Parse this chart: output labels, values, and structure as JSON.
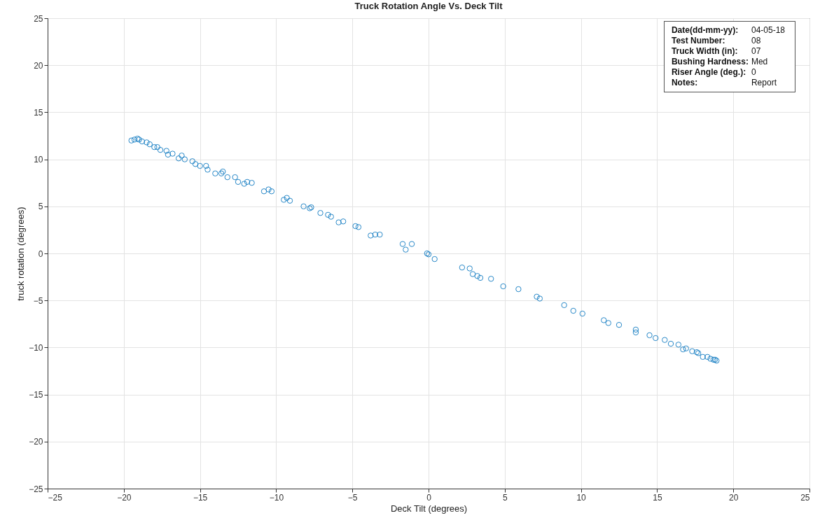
{
  "chart_data": {
    "type": "scatter",
    "title": "Truck Rotation Angle Vs. Deck Tilt",
    "xlabel": "Deck Tilt (degrees)",
    "ylabel": "truck rotation (degrees)",
    "x": [
      -19.5,
      -19.3,
      -19.1,
      -19.0,
      -18.8,
      -18.5,
      -18.3,
      -18.0,
      -17.8,
      -17.6,
      -17.2,
      -17.1,
      -16.8,
      -16.4,
      -16.2,
      -16.0,
      -15.5,
      -15.3,
      -15.0,
      -14.6,
      -14.5,
      -14.0,
      -13.6,
      -13.5,
      -13.2,
      -12.7,
      -12.5,
      -12.1,
      -11.9,
      -11.6,
      -10.8,
      -10.5,
      -10.3,
      -9.5,
      -9.3,
      -9.1,
      -8.2,
      -7.8,
      -7.7,
      -7.1,
      -6.6,
      -6.4,
      -5.9,
      -5.6,
      -4.8,
      -4.6,
      -3.8,
      -3.5,
      -3.2,
      -1.7,
      -1.5,
      -1.1,
      -0.1,
      0.0,
      0.4,
      2.2,
      2.7,
      2.9,
      3.2,
      3.4,
      4.1,
      4.9,
      5.9,
      7.1,
      7.3,
      8.9,
      9.5,
      10.1,
      11.5,
      11.8,
      12.5,
      13.6,
      13.6,
      14.5,
      14.9,
      15.5,
      15.9,
      16.4,
      16.7,
      16.9,
      17.3,
      17.6,
      17.7,
      18.0,
      18.3,
      18.5,
      18.7,
      18.9,
      18.8
    ],
    "series": [
      {
        "color": "#0072bd",
        "values": [
          12.0,
          12.1,
          12.2,
          12.1,
          11.9,
          11.8,
          11.6,
          11.3,
          11.3,
          11.0,
          10.9,
          10.5,
          10.6,
          10.1,
          10.4,
          10.0,
          9.8,
          9.5,
          9.3,
          9.3,
          8.9,
          8.5,
          8.5,
          8.7,
          8.1,
          8.1,
          7.6,
          7.4,
          7.6,
          7.5,
          6.6,
          6.8,
          6.6,
          5.7,
          5.9,
          5.6,
          5.0,
          4.8,
          4.9,
          4.3,
          4.1,
          3.9,
          3.3,
          3.4,
          2.9,
          2.8,
          1.9,
          2.0,
          2.0,
          1.0,
          0.4,
          1.0,
          0.0,
          -0.1,
          -0.6,
          -1.5,
          -1.6,
          -2.2,
          -2.4,
          -2.6,
          -2.7,
          -3.5,
          -3.8,
          -4.6,
          -4.8,
          -5.5,
          -6.1,
          -6.4,
          -7.1,
          -7.4,
          -7.6,
          -8.1,
          -8.4,
          -8.7,
          -9.0,
          -9.2,
          -9.6,
          -9.7,
          -10.2,
          -10.1,
          -10.4,
          -10.5,
          -10.6,
          -11.0,
          -11.0,
          -11.2,
          -11.3,
          -11.4,
          -11.3
        ]
      }
    ],
    "xlim": [
      -25,
      25
    ],
    "xticks": [
      -25,
      -20,
      -15,
      -10,
      -5,
      0,
      5,
      10,
      15,
      20,
      25
    ],
    "ylim": [
      -25,
      25
    ],
    "yticks": [
      -25,
      -20,
      -15,
      -10,
      -5,
      0,
      5,
      10,
      15,
      20,
      25
    ],
    "grid": true,
    "marker": "circle",
    "annotations": [
      "Date(dd-mm-yy): 04-05-18",
      "Test Number: 08",
      "Truck Width (in): 07",
      "Bushing Hardness: Med",
      "Riser Angle (deg.): 0",
      "Notes: Report"
    ]
  }
}
